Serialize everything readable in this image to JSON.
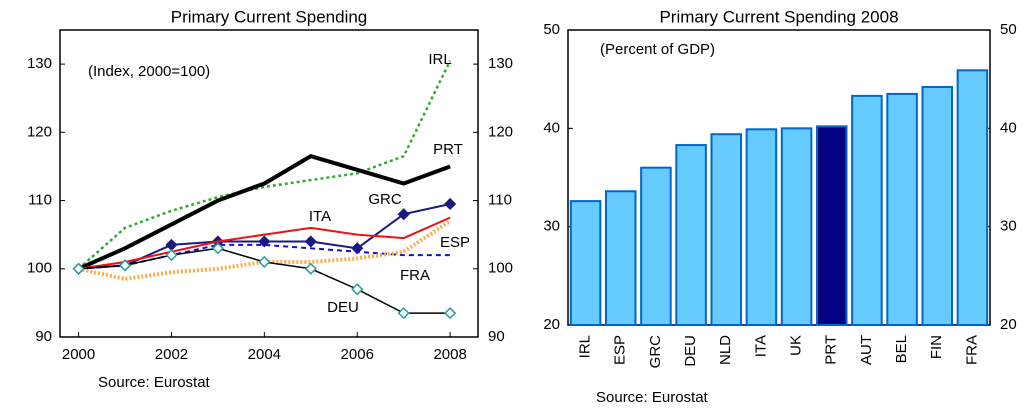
{
  "chart_data": [
    {
      "type": "line",
      "title": "Primary Current Spending",
      "annotation": "(Index, 2000=100)",
      "source": "Source: Eurostat",
      "x": [
        2000,
        2001,
        2002,
        2003,
        2004,
        2005,
        2006,
        2007,
        2008
      ],
      "xlim": [
        1999.6,
        2008.6
      ],
      "xticks": [
        2000,
        2002,
        2004,
        2006,
        2008
      ],
      "ylim": [
        90,
        135
      ],
      "yticks": [
        90,
        100,
        110,
        120,
        130
      ],
      "y2lim": [
        90,
        135
      ],
      "y2ticks": [
        90,
        100,
        110,
        120,
        130
      ],
      "series": [
        {
          "name": "IRL",
          "color": "#33aa33",
          "dash": "3,3",
          "width": 2.5,
          "values": [
            100,
            106,
            108.5,
            110.5,
            112,
            113,
            114,
            116.5,
            130.5
          ]
        },
        {
          "name": "PRT",
          "color": "#000000",
          "width": 4,
          "values": [
            100,
            103,
            106.5,
            110,
            112.5,
            116.5,
            114.5,
            112.5,
            115
          ]
        },
        {
          "name": "GRC",
          "color": "#1a1a80",
          "width": 2,
          "marker": "diamond",
          "marker_color": "#1a1a80",
          "values": [
            100,
            100.5,
            103.5,
            104,
            104,
            104,
            103,
            108,
            109.5
          ]
        },
        {
          "name": "ITA",
          "color": "#ee1111",
          "width": 2,
          "values": [
            100,
            101,
            102.5,
            104,
            105,
            106,
            105,
            104.5,
            107.5
          ]
        },
        {
          "name": "ESP",
          "color": "#1111cc",
          "dash": "5,4",
          "width": 2,
          "values": [
            100,
            100.5,
            102,
            103.5,
            103.5,
            103,
            102.5,
            102,
            102
          ]
        },
        {
          "name": "FRA",
          "color": "#ffaa44",
          "dash": "2,2",
          "width": 4,
          "values": [
            100,
            98.5,
            99.5,
            100,
            101,
            101,
            101.5,
            102.5,
            107
          ]
        },
        {
          "name": "DEU",
          "color": "#000000",
          "width": 1.5,
          "marker": "diamond",
          "marker_color": "#2a9a9a",
          "values": [
            100,
            100.5,
            102,
            103,
            101,
            100,
            97,
            93.5,
            93.5
          ]
        }
      ]
    },
    {
      "type": "bar",
      "title": "Primary Current Spending 2008",
      "annotation": "(Percent of GDP)",
      "source": "Source: Eurostat",
      "categories": [
        "IRL",
        "ESP",
        "GRC",
        "DEU",
        "NLD",
        "ITA",
        "UK",
        "PRT",
        "AUT",
        "BEL",
        "FIN",
        "FRA"
      ],
      "values": [
        32.6,
        33.6,
        36,
        38.3,
        39.4,
        39.9,
        40,
        40.2,
        43.3,
        43.5,
        44.2,
        45.9
      ],
      "color": "#66ccff",
      "highlight": {
        "index": 7,
        "color": "#000080"
      },
      "edge_color": "#0066cc",
      "ylim": [
        20,
        50
      ],
      "yticks": [
        20,
        30,
        40,
        50
      ],
      "y2lim": [
        20,
        50
      ],
      "y2ticks": [
        20,
        30,
        40,
        50
      ]
    }
  ]
}
